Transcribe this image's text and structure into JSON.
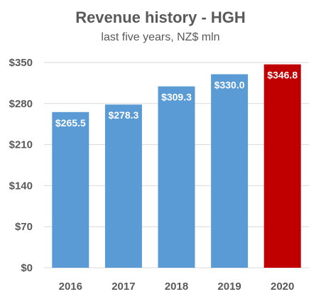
{
  "chart_data": {
    "type": "bar",
    "title": "Revenue history - HGH",
    "subtitle": "last five years, NZ$ mln",
    "categories": [
      "2016",
      "2017",
      "2018",
      "2019",
      "2020"
    ],
    "values": [
      265.5,
      278.3,
      309.3,
      330.0,
      346.8
    ],
    "value_labels": [
      "$265.5",
      "$278.3",
      "$309.3",
      "$330.0",
      "$346.8"
    ],
    "bar_colors": [
      "#5B9BD5",
      "#5B9BD5",
      "#5B9BD5",
      "#5B9BD5",
      "#C00000"
    ],
    "ylim": [
      0,
      350
    ],
    "y_ticks": [
      0,
      70,
      140,
      210,
      280,
      350
    ],
    "y_tick_labels": [
      "$0",
      "$70",
      "$140",
      "$210",
      "$280",
      "$350"
    ],
    "grid": true,
    "legend": "none"
  },
  "colors": {
    "grid": "#D9D9D9",
    "text": "#595959",
    "label": "#FFFFFF"
  }
}
